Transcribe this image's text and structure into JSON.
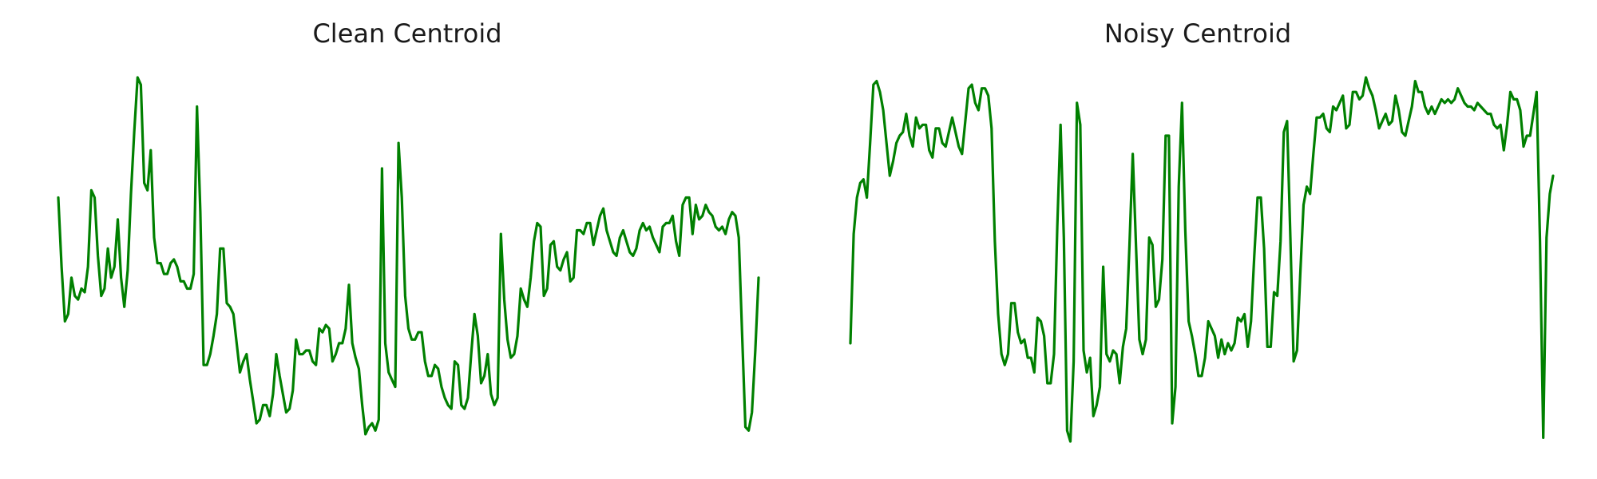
{
  "chart_data": [
    {
      "type": "line",
      "title": "Clean Centroid",
      "xlabel": "",
      "ylabel": "",
      "axes_visible": false,
      "grid": false,
      "color": "#008000",
      "y": [
        0.67,
        0.48,
        0.33,
        0.35,
        0.45,
        0.4,
        0.39,
        0.42,
        0.41,
        0.48,
        0.69,
        0.67,
        0.51,
        0.4,
        0.42,
        0.53,
        0.45,
        0.48,
        0.61,
        0.45,
        0.37,
        0.47,
        0.68,
        0.85,
        1.0,
        0.98,
        0.71,
        0.69,
        0.8,
        0.56,
        0.49,
        0.49,
        0.46,
        0.46,
        0.49,
        0.5,
        0.48,
        0.44,
        0.44,
        0.42,
        0.42,
        0.46,
        0.92,
        0.63,
        0.21,
        0.21,
        0.24,
        0.29,
        0.35,
        0.53,
        0.53,
        0.38,
        0.37,
        0.35,
        0.27,
        0.19,
        0.22,
        0.24,
        0.17,
        0.11,
        0.05,
        0.06,
        0.1,
        0.1,
        0.07,
        0.13,
        0.24,
        0.18,
        0.13,
        0.08,
        0.09,
        0.14,
        0.28,
        0.24,
        0.24,
        0.25,
        0.25,
        0.22,
        0.21,
        0.31,
        0.3,
        0.32,
        0.31,
        0.22,
        0.24,
        0.27,
        0.27,
        0.31,
        0.43,
        0.27,
        0.23,
        0.2,
        0.1,
        0.02,
        0.04,
        0.05,
        0.03,
        0.06,
        0.75,
        0.27,
        0.19,
        0.17,
        0.15,
        0.82,
        0.67,
        0.4,
        0.31,
        0.28,
        0.28,
        0.3,
        0.3,
        0.22,
        0.18,
        0.18,
        0.21,
        0.2,
        0.15,
        0.12,
        0.1,
        0.09,
        0.22,
        0.21,
        0.1,
        0.09,
        0.12,
        0.24,
        0.35,
        0.29,
        0.16,
        0.18,
        0.24,
        0.13,
        0.1,
        0.12,
        0.57,
        0.39,
        0.28,
        0.23,
        0.24,
        0.29,
        0.42,
        0.39,
        0.37,
        0.45,
        0.55,
        0.6,
        0.59,
        0.4,
        0.42,
        0.54,
        0.55,
        0.48,
        0.47,
        0.5,
        0.52,
        0.44,
        0.45,
        0.58,
        0.58,
        0.57,
        0.6,
        0.6,
        0.54,
        0.58,
        0.62,
        0.64,
        0.58,
        0.55,
        0.52,
        0.51,
        0.56,
        0.58,
        0.55,
        0.52,
        0.51,
        0.53,
        0.58,
        0.6,
        0.58,
        0.59,
        0.56,
        0.54,
        0.52,
        0.59,
        0.6,
        0.6,
        0.62,
        0.55,
        0.51,
        0.65,
        0.67,
        0.67,
        0.57,
        0.65,
        0.61,
        0.62,
        0.65,
        0.63,
        0.62,
        0.59,
        0.58,
        0.59,
        0.57,
        0.61,
        0.63,
        0.62,
        0.56,
        0.3,
        0.04,
        0.03,
        0.08,
        0.25,
        0.45
      ]
    },
    {
      "type": "line",
      "title": "Noisy Centroid",
      "xlabel": "",
      "ylabel": "",
      "axes_visible": false,
      "grid": false,
      "color": "#008000",
      "y": [
        0.27,
        0.57,
        0.67,
        0.71,
        0.72,
        0.67,
        0.82,
        0.98,
        0.99,
        0.96,
        0.91,
        0.82,
        0.73,
        0.77,
        0.82,
        0.84,
        0.85,
        0.9,
        0.84,
        0.81,
        0.89,
        0.86,
        0.87,
        0.87,
        0.8,
        0.78,
        0.86,
        0.86,
        0.82,
        0.81,
        0.85,
        0.89,
        0.85,
        0.81,
        0.79,
        0.88,
        0.97,
        0.98,
        0.93,
        0.91,
        0.97,
        0.97,
        0.95,
        0.86,
        0.55,
        0.35,
        0.24,
        0.21,
        0.24,
        0.38,
        0.38,
        0.3,
        0.27,
        0.28,
        0.23,
        0.23,
        0.19,
        0.34,
        0.33,
        0.29,
        0.16,
        0.16,
        0.24,
        0.59,
        0.87,
        0.56,
        0.03,
        0.0,
        0.22,
        0.93,
        0.87,
        0.25,
        0.19,
        0.23,
        0.07,
        0.1,
        0.15,
        0.48,
        0.24,
        0.22,
        0.25,
        0.24,
        0.16,
        0.26,
        0.31,
        0.54,
        0.79,
        0.53,
        0.28,
        0.24,
        0.28,
        0.56,
        0.54,
        0.37,
        0.39,
        0.5,
        0.84,
        0.84,
        0.05,
        0.15,
        0.7,
        0.93,
        0.58,
        0.33,
        0.29,
        0.24,
        0.18,
        0.18,
        0.23,
        0.33,
        0.31,
        0.29,
        0.23,
        0.28,
        0.24,
        0.27,
        0.25,
        0.27,
        0.34,
        0.33,
        0.35,
        0.26,
        0.33,
        0.51,
        0.67,
        0.67,
        0.53,
        0.26,
        0.26,
        0.41,
        0.4,
        0.55,
        0.85,
        0.88,
        0.56,
        0.22,
        0.25,
        0.46,
        0.65,
        0.7,
        0.68,
        0.79,
        0.89,
        0.89,
        0.9,
        0.86,
        0.85,
        0.92,
        0.91,
        0.93,
        0.95,
        0.86,
        0.87,
        0.96,
        0.96,
        0.94,
        0.95,
        1.0,
        0.97,
        0.95,
        0.91,
        0.86,
        0.88,
        0.9,
        0.87,
        0.88,
        0.95,
        0.91,
        0.85,
        0.84,
        0.88,
        0.92,
        0.99,
        0.96,
        0.96,
        0.92,
        0.9,
        0.92,
        0.9,
        0.92,
        0.94,
        0.93,
        0.94,
        0.93,
        0.94,
        0.97,
        0.95,
        0.93,
        0.92,
        0.92,
        0.91,
        0.93,
        0.92,
        0.91,
        0.9,
        0.9,
        0.87,
        0.86,
        0.87,
        0.8,
        0.87,
        0.96,
        0.94,
        0.94,
        0.91,
        0.81,
        0.84,
        0.84,
        0.9,
        0.96,
        0.55,
        0.01,
        0.56,
        0.68,
        0.73
      ]
    }
  ]
}
